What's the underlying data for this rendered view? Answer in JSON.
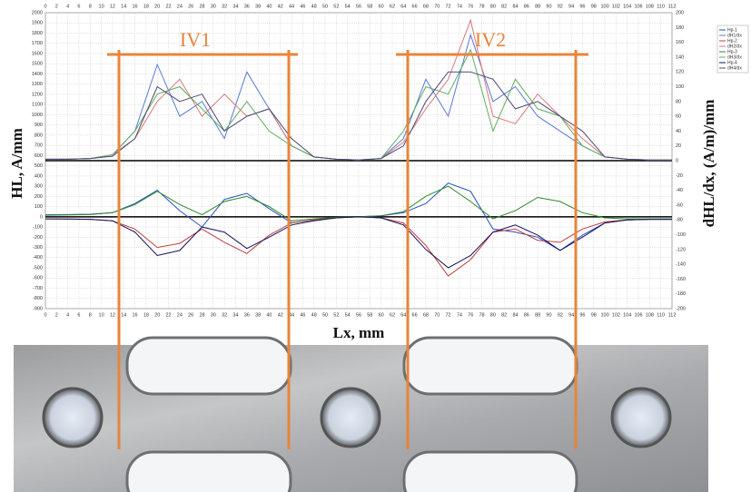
{
  "chart_data": {
    "type": "line",
    "y_label": "HL, A/mm",
    "y2_label": "dHL/dx, (A/m)/mm",
    "x_label": "Lx, mm",
    "annotations": [
      "IV1",
      "IV2"
    ],
    "x": [
      0,
      4,
      8,
      12,
      16,
      20,
      24,
      28,
      32,
      36,
      40,
      44,
      48,
      52,
      56,
      60,
      64,
      68,
      72,
      76,
      80,
      84,
      88,
      92,
      96,
      100,
      104,
      108,
      112
    ],
    "series": [
      {
        "name": "Hp-1",
        "color": "#2b4fc0",
        "values": [
          20,
          22,
          25,
          40,
          130,
          260,
          60,
          -100,
          170,
          230,
          80,
          -60,
          -30,
          -10,
          0,
          10,
          40,
          130,
          330,
          250,
          -120,
          -150,
          -200,
          -330,
          -180,
          -60,
          -30,
          -25,
          -25
        ]
      },
      {
        "name": "dH1/dx",
        "color": "#5a78d8",
        "axis": "y2",
        "values": [
          2,
          2,
          3,
          8,
          40,
          130,
          60,
          80,
          30,
          120,
          70,
          20,
          5,
          2,
          1,
          3,
          30,
          110,
          60,
          170,
          80,
          100,
          60,
          40,
          20,
          5,
          2,
          1,
          1
        ]
      },
      {
        "name": "Hp-2",
        "color": "#c43c3c",
        "values": [
          -20,
          -22,
          -25,
          -40,
          -120,
          -300,
          -260,
          -120,
          -250,
          -360,
          -180,
          -60,
          -30,
          -10,
          0,
          -10,
          -60,
          -280,
          -580,
          -420,
          -150,
          -120,
          -230,
          -250,
          -120,
          -50,
          -30,
          -25,
          -25
        ]
      },
      {
        "name": "dH2/dx",
        "color": "#d87878",
        "axis": "y2",
        "values": [
          2,
          2,
          3,
          8,
          30,
          80,
          110,
          60,
          90,
          60,
          70,
          20,
          5,
          2,
          1,
          3,
          25,
          70,
          110,
          190,
          60,
          50,
          90,
          60,
          30,
          5,
          2,
          1,
          1
        ]
      },
      {
        "name": "Hp-3",
        "color": "#2a8a2a",
        "values": [
          15,
          18,
          22,
          40,
          120,
          250,
          120,
          20,
          150,
          200,
          100,
          -40,
          -20,
          -5,
          0,
          10,
          50,
          200,
          300,
          150,
          -20,
          60,
          190,
          150,
          40,
          -10,
          -20,
          -20,
          -20
        ]
      },
      {
        "name": "dH3/dx",
        "color": "#5fae5f",
        "axis": "y2",
        "values": [
          2,
          2,
          3,
          8,
          40,
          90,
          100,
          70,
          40,
          80,
          40,
          20,
          5,
          2,
          1,
          3,
          40,
          100,
          90,
          150,
          40,
          110,
          70,
          60,
          20,
          5,
          2,
          1,
          1
        ]
      },
      {
        "name": "Hp-4",
        "color": "#12125e",
        "values": [
          -20,
          -22,
          -25,
          -40,
          -150,
          -380,
          -330,
          -100,
          -150,
          -310,
          -200,
          -80,
          -40,
          -10,
          0,
          -10,
          -80,
          -320,
          -500,
          -380,
          -150,
          -80,
          -180,
          -330,
          -200,
          -60,
          -30,
          -25,
          -25
        ]
      },
      {
        "name": "dH4/dx",
        "color": "#4a4a7a",
        "axis": "y2",
        "values": [
          2,
          2,
          3,
          6,
          30,
          100,
          80,
          90,
          40,
          60,
          70,
          30,
          5,
          2,
          1,
          3,
          20,
          80,
          120,
          120,
          110,
          70,
          80,
          60,
          40,
          5,
          2,
          1,
          1
        ]
      }
    ],
    "xlim": [
      0,
      112
    ],
    "xticks": [
      0,
      2,
      4,
      6,
      8,
      10,
      12,
      14,
      16,
      18,
      20,
      22,
      24,
      26,
      28,
      30,
      32,
      34,
      36,
      38,
      40,
      42,
      44,
      46,
      48,
      50,
      52,
      54,
      56,
      58,
      60,
      62,
      64,
      66,
      68,
      70,
      72,
      74,
      76,
      78,
      80,
      82,
      84,
      86,
      88,
      90,
      92,
      94,
      96,
      98,
      100,
      102,
      104,
      106,
      108,
      110,
      112
    ],
    "ylim": [
      -900,
      2000
    ],
    "yticks": [
      -900,
      -800,
      -700,
      -600,
      -500,
      -400,
      -300,
      -200,
      -100,
      0,
      100,
      200,
      300,
      400,
      500,
      600,
      700,
      800,
      900,
      1000,
      1100,
      1200,
      1300,
      1400,
      1500,
      1600,
      1700,
      1800,
      1900,
      2000
    ],
    "y2lim": [
      -200,
      200
    ],
    "y2ticks": [
      -200,
      -180,
      -160,
      -140,
      -120,
      -100,
      -80,
      -60,
      -40,
      -20,
      0,
      20,
      40,
      60,
      80,
      100,
      120,
      140,
      160,
      180,
      200
    ],
    "grid": true,
    "legend": "right"
  }
}
